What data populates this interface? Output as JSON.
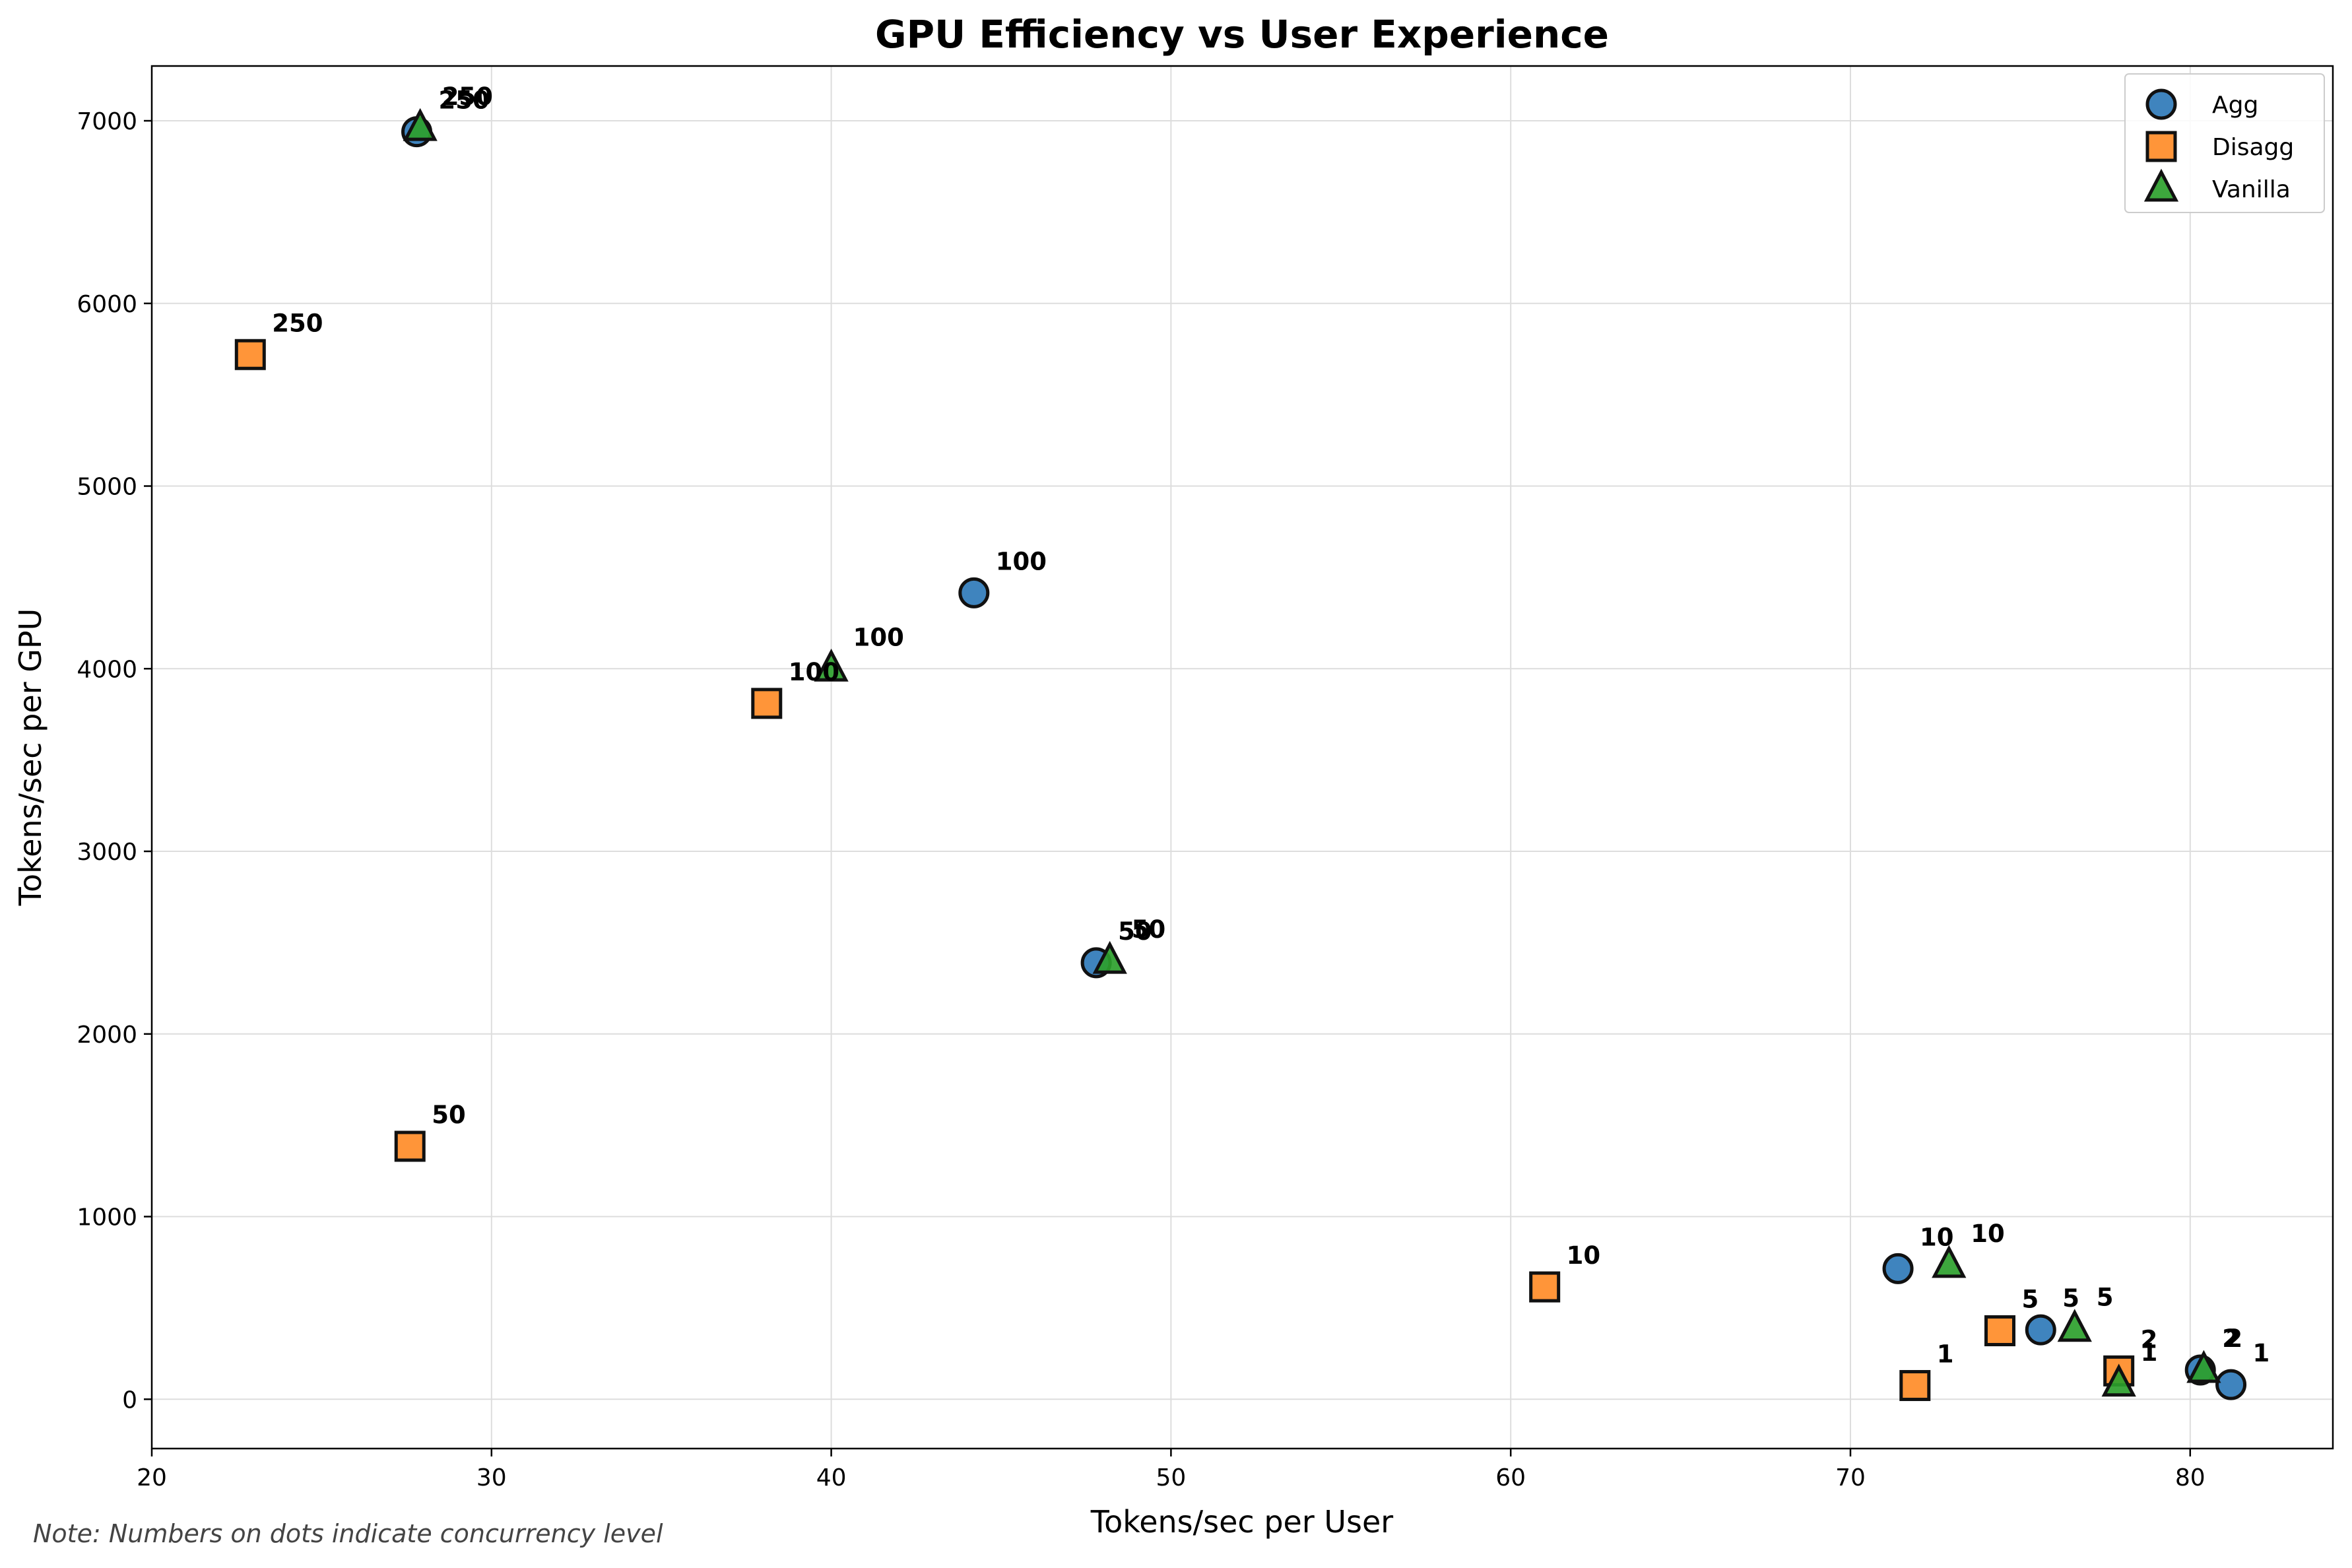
{
  "chart_data": {
    "type": "scatter",
    "title": "GPU Efficiency vs User Experience",
    "xlabel": "Tokens/sec per User",
    "ylabel": "Tokens/sec per GPU",
    "xlim": [
      20,
      84.2
    ],
    "ylim": [
      -270,
      7300
    ],
    "xticks": [
      20,
      30,
      40,
      50,
      60,
      70,
      80
    ],
    "yticks": [
      0,
      1000,
      2000,
      3000,
      4000,
      5000,
      6000,
      7000
    ],
    "grid": true,
    "legend_position": "top-right",
    "note": "Note: Numbers on dots indicate concurrency level",
    "series": [
      {
        "name": "Agg",
        "marker": "circle",
        "color": "#2f7ab9",
        "points": [
          {
            "x": 81.2,
            "y": 80,
            "label": "1"
          },
          {
            "x": 80.3,
            "y": 160,
            "label": "2"
          },
          {
            "x": 75.6,
            "y": 380,
            "label": "5"
          },
          {
            "x": 71.4,
            "y": 715,
            "label": "10"
          },
          {
            "x": 47.8,
            "y": 2390,
            "label": "50"
          },
          {
            "x": 44.2,
            "y": 4415,
            "label": "100"
          },
          {
            "x": 27.8,
            "y": 6940,
            "label": "250"
          }
        ]
      },
      {
        "name": "Disagg",
        "marker": "square",
        "color": "#ff8c28",
        "points": [
          {
            "x": 71.9,
            "y": 75,
            "label": "1"
          },
          {
            "x": 77.9,
            "y": 155,
            "label": "2"
          },
          {
            "x": 74.4,
            "y": 375,
            "label": "5"
          },
          {
            "x": 61.0,
            "y": 615,
            "label": "10"
          },
          {
            "x": 27.6,
            "y": 1385,
            "label": "50"
          },
          {
            "x": 38.1,
            "y": 3810,
            "label": "100"
          },
          {
            "x": 22.9,
            "y": 5720,
            "label": "250"
          }
        ]
      },
      {
        "name": "Vanilla",
        "marker": "triangle",
        "color": "#2ca02c",
        "points": [
          {
            "x": 77.9,
            "y": 85,
            "label": "1"
          },
          {
            "x": 80.4,
            "y": 160,
            "label": "2"
          },
          {
            "x": 76.6,
            "y": 385,
            "label": "5"
          },
          {
            "x": 72.9,
            "y": 735,
            "label": "10"
          },
          {
            "x": 48.2,
            "y": 2400,
            "label": "50"
          },
          {
            "x": 40.0,
            "y": 4000,
            "label": "100"
          },
          {
            "x": 27.9,
            "y": 6960,
            "label": "250"
          }
        ]
      }
    ]
  }
}
